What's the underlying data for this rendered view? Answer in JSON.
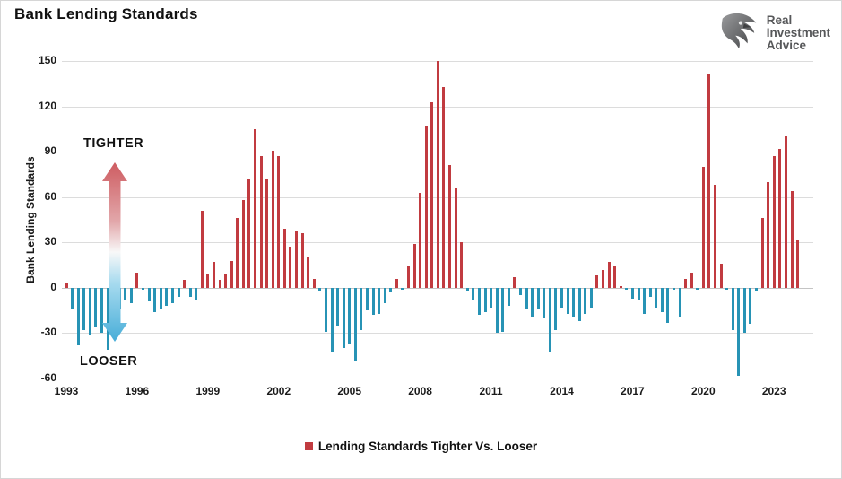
{
  "header": {
    "title": "Bank Lending Standards"
  },
  "logo": {
    "line1": "Real",
    "line2": "Investment",
    "line3": "Advice"
  },
  "annotations": {
    "tighter": "TIGHTER",
    "looser": "LOOSER"
  },
  "legend": {
    "label": "Lending Standards Tighter Vs. Looser"
  },
  "colors": {
    "tighter_bar": "#c13b40",
    "looser_bar": "#2793b5",
    "gridline": "#dcdcdc",
    "arrow_red": "#ce5c61",
    "arrow_blue": "#47add8",
    "logo_gray": "#57585a"
  },
  "y_axis": {
    "title": "Bank Lending Standards",
    "ticks": [
      150,
      120,
      90,
      60,
      30,
      0,
      -30,
      -60
    ],
    "min": -60,
    "max": 150
  },
  "x_axis": {
    "tick_years": [
      "1993",
      "1996",
      "1999",
      "2002",
      "2005",
      "2008",
      "2011",
      "2014",
      "2017",
      "2020",
      "2023"
    ]
  },
  "chart_data": {
    "type": "bar",
    "title": "Bank Lending Standards",
    "ylabel": "Bank Lending Standards",
    "ylim": [
      -60,
      150
    ],
    "grid": "horizontal",
    "legend_position": "bottom",
    "series_name": "Lending Standards Tighter Vs. Looser",
    "positive_meaning": "TIGHTER",
    "negative_meaning": "LOOSER",
    "frequency": "quarterly",
    "x": [
      "1993Q1",
      "1993Q2",
      "1993Q3",
      "1993Q4",
      "1994Q1",
      "1994Q2",
      "1994Q3",
      "1994Q4",
      "1995Q1",
      "1995Q2",
      "1995Q3",
      "1995Q4",
      "1996Q1",
      "1996Q2",
      "1996Q3",
      "1996Q4",
      "1997Q1",
      "1997Q2",
      "1997Q3",
      "1997Q4",
      "1998Q1",
      "1998Q2",
      "1998Q3",
      "1998Q4",
      "1999Q1",
      "1999Q2",
      "1999Q3",
      "1999Q4",
      "2000Q1",
      "2000Q2",
      "2000Q3",
      "2000Q4",
      "2001Q1",
      "2001Q2",
      "2001Q3",
      "2001Q4",
      "2002Q1",
      "2002Q2",
      "2002Q3",
      "2002Q4",
      "2003Q1",
      "2003Q2",
      "2003Q3",
      "2003Q4",
      "2004Q1",
      "2004Q2",
      "2004Q3",
      "2004Q4",
      "2005Q1",
      "2005Q2",
      "2005Q3",
      "2005Q4",
      "2006Q1",
      "2006Q2",
      "2006Q3",
      "2006Q4",
      "2007Q1",
      "2007Q2",
      "2007Q3",
      "2007Q4",
      "2008Q1",
      "2008Q2",
      "2008Q3",
      "2008Q4",
      "2009Q1",
      "2009Q2",
      "2009Q3",
      "2009Q4",
      "2010Q1",
      "2010Q2",
      "2010Q3",
      "2010Q4",
      "2011Q1",
      "2011Q2",
      "2011Q3",
      "2011Q4",
      "2012Q1",
      "2012Q2",
      "2012Q3",
      "2012Q4",
      "2013Q1",
      "2013Q2",
      "2013Q3",
      "2013Q4",
      "2014Q1",
      "2014Q2",
      "2014Q3",
      "2014Q4",
      "2015Q1",
      "2015Q2",
      "2015Q3",
      "2015Q4",
      "2016Q1",
      "2016Q2",
      "2016Q3",
      "2016Q4",
      "2017Q1",
      "2017Q2",
      "2017Q3",
      "2017Q4",
      "2018Q1",
      "2018Q2",
      "2018Q3",
      "2018Q4",
      "2019Q1",
      "2019Q2",
      "2019Q3",
      "2019Q4",
      "2020Q1",
      "2020Q2",
      "2020Q3",
      "2020Q4",
      "2021Q1",
      "2021Q2",
      "2021Q3",
      "2021Q4",
      "2022Q1",
      "2022Q2",
      "2022Q3",
      "2022Q4",
      "2023Q1",
      "2023Q2",
      "2023Q3",
      "2023Q4",
      "2024Q1"
    ],
    "values": [
      3,
      -14,
      -38,
      -28,
      -31,
      -26,
      -30,
      -41,
      -22,
      -14,
      -8,
      -10,
      10,
      -1,
      -9,
      -16,
      -14,
      -12,
      -10,
      -6,
      5,
      -6,
      -8,
      51,
      9,
      17,
      5,
      9,
      18,
      46,
      58,
      72,
      105,
      87,
      72,
      91,
      87,
      39,
      27,
      38,
      36,
      21,
      6,
      -2,
      -29,
      -42,
      -25,
      -40,
      -37,
      -48,
      -28,
      -15,
      -18,
      -17,
      -10,
      -3,
      6,
      -1,
      15,
      29,
      63,
      107,
      123,
      150,
      133,
      81,
      66,
      30,
      -2,
      -8,
      -18,
      -16,
      -13,
      -30,
      -29,
      -12,
      7,
      -5,
      -14,
      -19,
      -14,
      -20,
      -42,
      -28,
      -13,
      -17,
      -19,
      -22,
      -17,
      -13,
      8,
      12,
      17,
      15,
      1,
      -1,
      -7,
      -8,
      -17,
      -6,
      -13,
      -16,
      -23,
      -1,
      -19,
      6,
      10,
      -1,
      80,
      141,
      68,
      16,
      -1,
      -28,
      -58,
      -30,
      -24,
      -2,
      46,
      70,
      87,
      92,
      100,
      64,
      32
    ]
  }
}
